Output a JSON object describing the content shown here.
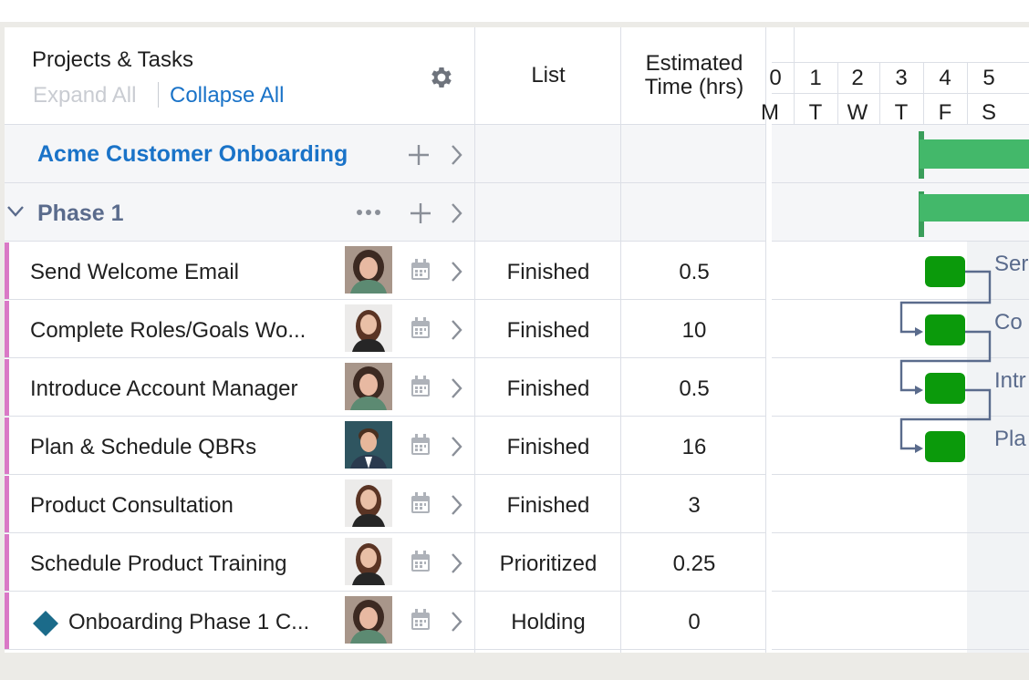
{
  "header": {
    "title": "Projects & Tasks",
    "expand_all": "Expand All",
    "collapse_all": "Collapse All",
    "list": "List",
    "estimated_time_line1": "Estimated",
    "estimated_time_line2": "Time (hrs)"
  },
  "project": {
    "name": "Acme Customer Onboarding"
  },
  "phase": {
    "name": "Phase 1"
  },
  "tasks": [
    {
      "name": "Send Welcome Email",
      "list": "Finished",
      "est": "0.5"
    },
    {
      "name": "Complete Roles/Goals Wo...",
      "list": "Finished",
      "est": "10"
    },
    {
      "name": "Introduce Account Manager",
      "list": "Finished",
      "est": "0.5"
    },
    {
      "name": "Plan & Schedule QBRs",
      "list": "Finished",
      "est": "16"
    },
    {
      "name": "Product Consultation",
      "list": "Finished",
      "est": "3"
    },
    {
      "name": "Schedule Product Training",
      "list": "Prioritized",
      "est": "0.25"
    },
    {
      "name": "Onboarding Phase 1 C...",
      "list": "Holding",
      "est": "0"
    }
  ],
  "gantt": {
    "days": [
      {
        "num": "0",
        "letter": "M"
      },
      {
        "num": "1",
        "letter": "T"
      },
      {
        "num": "2",
        "letter": "W"
      },
      {
        "num": "3",
        "letter": "T"
      },
      {
        "num": "4",
        "letter": "F"
      },
      {
        "num": "5",
        "letter": "S"
      }
    ],
    "bar_labels": [
      "Ser",
      "Co",
      "Intr",
      "Pla"
    ]
  },
  "colors": {
    "accent_blue": "#1a73c8",
    "phase_slate": "#5a6b8c",
    "task_accent": "#d979c6",
    "summary_bar": "#43b86a",
    "task_bar": "#0b9a0b",
    "milestone": "#1b6b8a"
  }
}
